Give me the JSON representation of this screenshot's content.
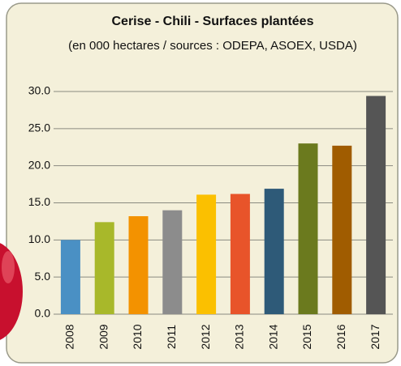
{
  "chart_data": {
    "type": "bar",
    "title": "Cerise - Chili - Surfaces plantées",
    "subtitle": "(en 000 hectares / sources : ODEPA, ASOEX, USDA)",
    "categories": [
      "2008",
      "2009",
      "2010",
      "2011",
      "2012",
      "2013",
      "2014",
      "2015",
      "2016",
      "2017"
    ],
    "values": [
      10.0,
      12.4,
      13.2,
      14.0,
      16.1,
      16.2,
      16.9,
      23.0,
      22.7,
      29.4
    ],
    "colors": [
      "#4a90c4",
      "#a8b82a",
      "#f39200",
      "#8c8c8c",
      "#fbc000",
      "#e8542a",
      "#2e5a78",
      "#6b7a1e",
      "#a05c00",
      "#555555"
    ],
    "ylim": [
      0,
      30
    ],
    "yticks": [
      {
        "value": 0,
        "label": "0.0"
      },
      {
        "value": 5,
        "label": "5.0"
      },
      {
        "value": 10,
        "label": "10.0"
      },
      {
        "value": 15,
        "label": "15.0"
      },
      {
        "value": 20,
        "label": "20.0"
      },
      {
        "value": 25,
        "label": "25.0"
      },
      {
        "value": 30,
        "label": "30.0"
      }
    ],
    "grid": true
  }
}
